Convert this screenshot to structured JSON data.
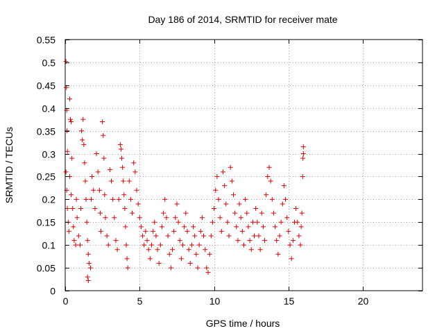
{
  "chart_data": {
    "type": "scatter",
    "title": "Day 186 of 2014, SRMTID for receiver mate",
    "xlabel": "GPS time / hours",
    "ylabel": "SRMTID / TECUs",
    "xlim": [
      0,
      24
    ],
    "ylim": [
      0,
      0.55
    ],
    "x_ticks": [
      0,
      5,
      10,
      15,
      20
    ],
    "y_ticks": [
      0,
      0.05,
      0.1,
      0.15,
      0.2,
      0.25,
      0.3,
      0.35,
      0.4,
      0.45,
      0.5,
      0.55
    ],
    "x_tick_labels": [
      "0",
      "5",
      "10",
      "15",
      "20"
    ],
    "y_tick_labels": [
      "0",
      "0.05",
      "0.1",
      "0.15",
      "0.2",
      "0.25",
      "0.3",
      "0.35",
      "0.4",
      "0.45",
      "0.5",
      "0.55"
    ],
    "grid": true,
    "marker": "+",
    "marker_color": "#e00000",
    "grid_color": "#a0a0a0",
    "series": [
      {
        "name": "SRMTID",
        "color": "#e00000",
        "points": [
          [
            0.05,
            0.502
          ],
          [
            0.08,
            0.445
          ],
          [
            0.1,
            0.395
          ],
          [
            0.12,
            0.35
          ],
          [
            0.15,
            0.305
          ],
          [
            0.05,
            0.26
          ],
          [
            0.1,
            0.22
          ],
          [
            0.15,
            0.18
          ],
          [
            0.2,
            0.15
          ],
          [
            0.25,
            0.13
          ],
          [
            0.3,
            0.42
          ],
          [
            0.35,
            0.375
          ],
          [
            0.4,
            0.37
          ],
          [
            0.45,
            0.29
          ],
          [
            0.3,
            0.25
          ],
          [
            0.4,
            0.21
          ],
          [
            0.5,
            0.18
          ],
          [
            0.55,
            0.14
          ],
          [
            0.6,
            0.11
          ],
          [
            0.7,
            0.1
          ],
          [
            0.75,
            0.2
          ],
          [
            0.8,
            0.16
          ],
          [
            0.9,
            0.12
          ],
          [
            1.0,
            0.1
          ],
          [
            1.05,
            0.18
          ],
          [
            1.1,
            0.35
          ],
          [
            1.15,
            0.33
          ],
          [
            1.2,
            0.375
          ],
          [
            1.25,
            0.32
          ],
          [
            1.3,
            0.28
          ],
          [
            1.35,
            0.24
          ],
          [
            1.4,
            0.2
          ],
          [
            1.45,
            0.15
          ],
          [
            1.5,
            0.11
          ],
          [
            1.55,
            0.08
          ],
          [
            1.6,
            0.06
          ],
          [
            1.5,
            0.03
          ],
          [
            1.55,
            0.022
          ],
          [
            1.7,
            0.05
          ],
          [
            1.75,
            0.2
          ],
          [
            1.8,
            0.25
          ],
          [
            1.9,
            0.22
          ],
          [
            2.0,
            0.18
          ],
          [
            2.1,
            0.3
          ],
          [
            2.2,
            0.26
          ],
          [
            2.3,
            0.22
          ],
          [
            2.35,
            0.17
          ],
          [
            2.4,
            0.13
          ],
          [
            2.5,
            0.37
          ],
          [
            2.55,
            0.34
          ],
          [
            2.6,
            0.29
          ],
          [
            2.65,
            0.21
          ],
          [
            2.7,
            0.16
          ],
          [
            2.8,
            0.12
          ],
          [
            2.9,
            0.1
          ],
          [
            3.0,
            0.265
          ],
          [
            3.1,
            0.24
          ],
          [
            3.2,
            0.2
          ],
          [
            3.3,
            0.16
          ],
          [
            3.4,
            0.11
          ],
          [
            3.5,
            0.09
          ],
          [
            3.6,
            0.2
          ],
          [
            3.7,
            0.32
          ],
          [
            3.75,
            0.31
          ],
          [
            3.8,
            0.29
          ],
          [
            3.85,
            0.27
          ],
          [
            3.9,
            0.24
          ],
          [
            3.95,
            0.21
          ],
          [
            4.0,
            0.18
          ],
          [
            4.05,
            0.14
          ],
          [
            4.1,
            0.1
          ],
          [
            4.15,
            0.07
          ],
          [
            4.2,
            0.05
          ],
          [
            4.3,
            0.24
          ],
          [
            4.4,
            0.2
          ],
          [
            4.5,
            0.17
          ],
          [
            4.6,
            0.28
          ],
          [
            4.7,
            0.26
          ],
          [
            4.8,
            0.22
          ],
          [
            4.9,
            0.19
          ],
          [
            5.0,
            0.16
          ],
          [
            5.1,
            0.14
          ],
          [
            5.2,
            0.12
          ],
          [
            5.3,
            0.1
          ],
          [
            5.4,
            0.13
          ],
          [
            5.5,
            0.11
          ],
          [
            5.6,
            0.09
          ],
          [
            5.7,
            0.07
          ],
          [
            5.8,
            0.1
          ],
          [
            5.9,
            0.13
          ],
          [
            6.0,
            0.15
          ],
          [
            6.1,
            0.12
          ],
          [
            6.2,
            0.09
          ],
          [
            6.3,
            0.06
          ],
          [
            6.4,
            0.1
          ],
          [
            6.5,
            0.14
          ],
          [
            6.6,
            0.17
          ],
          [
            6.7,
            0.2
          ],
          [
            6.8,
            0.16
          ],
          [
            6.9,
            0.12
          ],
          [
            7.0,
            0.08
          ],
          [
            7.1,
            0.05
          ],
          [
            7.2,
            0.09
          ],
          [
            7.3,
            0.13
          ],
          [
            7.4,
            0.16
          ],
          [
            7.5,
            0.19
          ],
          [
            7.6,
            0.15
          ],
          [
            7.7,
            0.11
          ],
          [
            7.8,
            0.07
          ],
          [
            7.9,
            0.1
          ],
          [
            8.0,
            0.14
          ],
          [
            8.1,
            0.17
          ],
          [
            8.2,
            0.13
          ],
          [
            8.3,
            0.09
          ],
          [
            8.4,
            0.06
          ],
          [
            8.5,
            0.1
          ],
          [
            8.6,
            0.14
          ],
          [
            8.7,
            0.12
          ],
          [
            8.8,
            0.08
          ],
          [
            8.9,
            0.05
          ],
          [
            9.0,
            0.1
          ],
          [
            9.1,
            0.13
          ],
          [
            9.2,
            0.16
          ],
          [
            9.3,
            0.12
          ],
          [
            9.4,
            0.09
          ],
          [
            9.5,
            0.05
          ],
          [
            9.6,
            0.04
          ],
          [
            9.7,
            0.08
          ],
          [
            9.8,
            0.12
          ],
          [
            9.9,
            0.15
          ],
          [
            10.0,
            0.18
          ],
          [
            10.1,
            0.22
          ],
          [
            10.2,
            0.25
          ],
          [
            10.3,
            0.2
          ],
          [
            10.4,
            0.16
          ],
          [
            10.5,
            0.13
          ],
          [
            10.6,
            0.26
          ],
          [
            10.7,
            0.23
          ],
          [
            10.8,
            0.19
          ],
          [
            10.9,
            0.15
          ],
          [
            11.0,
            0.12
          ],
          [
            11.1,
            0.27
          ],
          [
            11.2,
            0.24
          ],
          [
            11.3,
            0.21
          ],
          [
            11.4,
            0.17
          ],
          [
            11.5,
            0.14
          ],
          [
            11.6,
            0.11
          ],
          [
            11.7,
            0.19
          ],
          [
            11.8,
            0.16
          ],
          [
            11.9,
            0.13
          ],
          [
            12.0,
            0.1
          ],
          [
            12.1,
            0.2
          ],
          [
            12.2,
            0.17
          ],
          [
            12.3,
            0.14
          ],
          [
            12.4,
            0.11
          ],
          [
            12.5,
            0.09
          ],
          [
            12.6,
            0.15
          ],
          [
            12.7,
            0.12
          ],
          [
            12.8,
            0.18
          ],
          [
            12.9,
            0.15
          ],
          [
            13.0,
            0.12
          ],
          [
            13.1,
            0.09
          ],
          [
            13.2,
            0.17
          ],
          [
            13.3,
            0.14
          ],
          [
            13.4,
            0.11
          ],
          [
            13.5,
            0.21
          ],
          [
            13.6,
            0.25
          ],
          [
            13.7,
            0.27
          ],
          [
            13.8,
            0.24
          ],
          [
            13.9,
            0.2
          ],
          [
            14.0,
            0.17
          ],
          [
            14.1,
            0.14
          ],
          [
            14.2,
            0.11
          ],
          [
            14.3,
            0.08
          ],
          [
            14.4,
            0.12
          ],
          [
            14.5,
            0.15
          ],
          [
            14.6,
            0.19
          ],
          [
            14.7,
            0.23
          ],
          [
            14.8,
            0.2
          ],
          [
            14.9,
            0.16
          ],
          [
            15.0,
            0.13
          ],
          [
            15.1,
            0.1
          ],
          [
            15.2,
            0.07
          ],
          [
            15.3,
            0.11
          ],
          [
            15.4,
            0.15
          ],
          [
            15.5,
            0.18
          ],
          [
            15.6,
            0.15
          ],
          [
            15.7,
            0.12
          ],
          [
            15.8,
            0.1
          ],
          [
            15.85,
            0.14
          ],
          [
            15.9,
            0.17
          ],
          [
            15.95,
            0.25
          ],
          [
            16.0,
            0.3
          ],
          [
            16.0,
            0.315
          ],
          [
            15.97,
            0.29
          ]
        ]
      }
    ]
  }
}
